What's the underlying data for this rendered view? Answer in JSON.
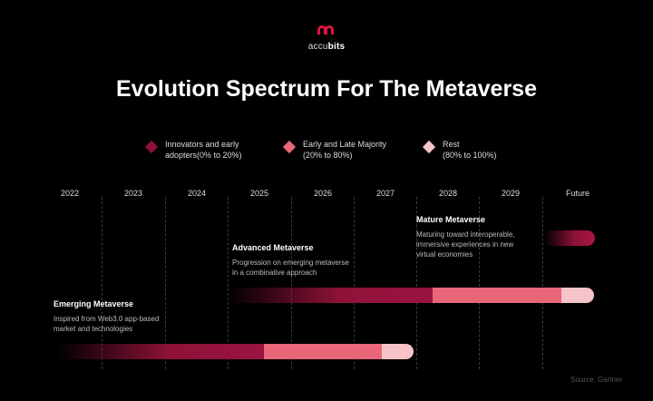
{
  "logo": {
    "text_light": "accu",
    "text_bold": "bits"
  },
  "title": "Evolution Spectrum For The Metaverse",
  "legend": [
    {
      "line1": "Innovators and early",
      "line2": "adopters(0% to 20%)",
      "color": "#8e1238"
    },
    {
      "line1": "Early and Late Majority",
      "line2": "(20% to 80%)",
      "color": "#e96678"
    },
    {
      "line1": "Rest",
      "line2": "(80% to 100%)",
      "color": "#f6c4c8"
    }
  ],
  "years": [
    "2022",
    "2023",
    "2024",
    "2025",
    "2026",
    "2027",
    "2028",
    "2029",
    "Future"
  ],
  "stages": [
    {
      "title": "Mature Metaverse",
      "desc": [
        "Maturing toward interoperable,",
        "immersive experiences in new",
        "virtual economies"
      ]
    },
    {
      "title": "Advanced Metaverse",
      "desc": [
        "Progression on emerging metaverse",
        "in a combinative approach"
      ]
    },
    {
      "title": "Emerging Metaverse",
      "desc": [
        "Inspired from Web3.0 app-based",
        "market and technologies"
      ]
    }
  ],
  "source": "Source: Gartner",
  "colors": {
    "dark": "#8e1238",
    "mid": "#e96678",
    "light": "#f6c4c8"
  }
}
